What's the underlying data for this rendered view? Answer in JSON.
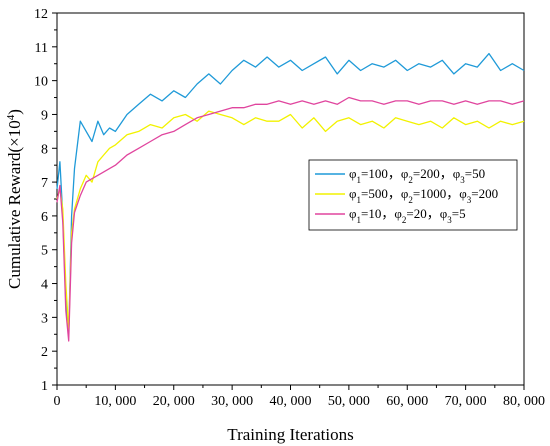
{
  "chart_data": {
    "type": "line",
    "xlabel": "Training Iterations",
    "ylabel_base": "Cumulative Reward(×10",
    "ylabel_sup": "4",
    "ylabel_close": ")",
    "xlim": [
      0,
      80000
    ],
    "ylim": [
      1,
      12
    ],
    "x_ticks": [
      0,
      10000,
      20000,
      30000,
      40000,
      50000,
      60000,
      70000,
      80000
    ],
    "x_tick_labels": [
      "0",
      "10, 000",
      "20, 000",
      "30, 000",
      "40, 000",
      "50, 000",
      "60, 000",
      "70, 000",
      "80, 000"
    ],
    "y_ticks": [
      1,
      2,
      3,
      4,
      5,
      6,
      7,
      8,
      9,
      10,
      11,
      12
    ],
    "y_tick_labels": [
      "1",
      "2",
      "3",
      "4",
      "5",
      "6",
      "7",
      "8",
      "9",
      "10",
      "11",
      "12"
    ],
    "grid": false,
    "legend_position": "right",
    "x": [
      0,
      500,
      1000,
      1500,
      2000,
      2500,
      3000,
      4000,
      5000,
      6000,
      7000,
      8000,
      9000,
      10000,
      12000,
      14000,
      16000,
      18000,
      20000,
      22000,
      24000,
      26000,
      28000,
      30000,
      32000,
      34000,
      36000,
      38000,
      40000,
      42000,
      44000,
      46000,
      48000,
      50000,
      52000,
      54000,
      56000,
      58000,
      60000,
      62000,
      64000,
      66000,
      68000,
      70000,
      72000,
      74000,
      76000,
      78000,
      80000
    ],
    "series": [
      {
        "legend_parts": [
          [
            "φ",
            "1",
            "=100，"
          ],
          [
            "φ",
            "2",
            "=200，"
          ],
          [
            "φ",
            "3",
            "=50"
          ]
        ],
        "color": "#1f9ad8",
        "values": [
          6.8,
          7.6,
          6.0,
          3.5,
          2.5,
          6.0,
          7.4,
          8.8,
          8.5,
          8.2,
          8.8,
          8.4,
          8.6,
          8.5,
          9.0,
          9.3,
          9.6,
          9.4,
          9.7,
          9.5,
          9.9,
          10.2,
          9.9,
          10.3,
          10.6,
          10.4,
          10.7,
          10.4,
          10.6,
          10.3,
          10.5,
          10.7,
          10.2,
          10.6,
          10.3,
          10.5,
          10.4,
          10.6,
          10.3,
          10.5,
          10.4,
          10.6,
          10.2,
          10.5,
          10.4,
          10.8,
          10.3,
          10.5,
          10.3
        ]
      },
      {
        "legend_parts": [
          [
            "φ",
            "1",
            "=500，"
          ],
          [
            "φ",
            "2",
            "=1000，"
          ],
          [
            "φ",
            "3",
            "=200"
          ]
        ],
        "color": "#f2f200",
        "values": [
          6.5,
          6.8,
          6.2,
          4.0,
          2.6,
          5.5,
          6.2,
          6.8,
          7.2,
          7.0,
          7.6,
          7.8,
          8.0,
          8.1,
          8.4,
          8.5,
          8.7,
          8.6,
          8.9,
          9.0,
          8.8,
          9.1,
          9.0,
          8.9,
          8.7,
          8.9,
          8.8,
          8.8,
          9.0,
          8.6,
          8.9,
          8.5,
          8.8,
          8.9,
          8.7,
          8.8,
          8.6,
          8.9,
          8.8,
          8.7,
          8.8,
          8.6,
          8.9,
          8.7,
          8.8,
          8.6,
          8.8,
          8.7,
          8.8
        ]
      },
      {
        "legend_parts": [
          [
            "φ",
            "1",
            "=10，"
          ],
          [
            "φ",
            "2",
            "=20，"
          ],
          [
            "φ",
            "3",
            "=5"
          ]
        ],
        "color": "#e0459e",
        "values": [
          6.4,
          6.9,
          5.8,
          3.2,
          2.3,
          5.2,
          6.1,
          6.6,
          7.0,
          7.1,
          7.2,
          7.3,
          7.4,
          7.5,
          7.8,
          8.0,
          8.2,
          8.4,
          8.5,
          8.7,
          8.9,
          9.0,
          9.1,
          9.2,
          9.2,
          9.3,
          9.3,
          9.4,
          9.3,
          9.4,
          9.3,
          9.4,
          9.3,
          9.5,
          9.4,
          9.4,
          9.3,
          9.4,
          9.4,
          9.3,
          9.4,
          9.4,
          9.3,
          9.4,
          9.3,
          9.4,
          9.4,
          9.3,
          9.4
        ]
      }
    ]
  }
}
